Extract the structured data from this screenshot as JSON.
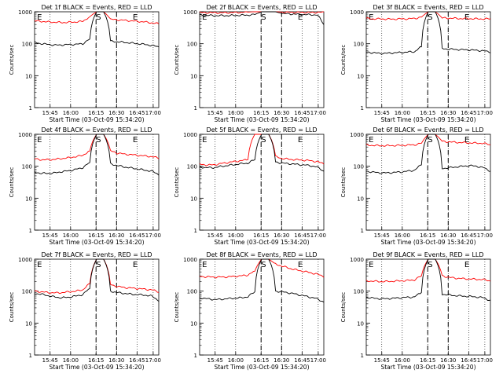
{
  "figure": {
    "xlabel": "Start Time (03-Oct-09 15:34:20)",
    "ylabel": "Counts/sec"
  },
  "colors": {
    "events": "#000000",
    "lld": "#ff0000",
    "axes": "#000000"
  },
  "chart_data": [
    {
      "type": "line",
      "title": "Det 1f BLACK = Events, RED = LLD",
      "xlabel": "Start Time (03-Oct-09 15:34:20)",
      "ylabel": "Counts/sec",
      "yscale": "log",
      "ylim": [
        1,
        1000
      ],
      "xticks": [
        "15:45",
        "16:00",
        "16:15",
        "16:30",
        "16:45",
        "17:00"
      ],
      "yticks": [
        "1",
        "10",
        "100",
        "1000"
      ],
      "markers": [
        "E",
        "S",
        "E"
      ],
      "series": [
        {
          "name": "LLD",
          "color": "#ff0000",
          "values": [
            520,
            500,
            480,
            470,
            460,
            470,
            480,
            500,
            700,
            1000,
            1000,
            580,
            560,
            540,
            520,
            500,
            480,
            450,
            420
          ]
        },
        {
          "name": "Events",
          "color": "#000000",
          "values": [
            110,
            100,
            95,
            90,
            92,
            94,
            96,
            100,
            140,
            1000,
            1000,
            120,
            115,
            110,
            105,
            100,
            95,
            88,
            80
          ]
        }
      ]
    },
    {
      "type": "line",
      "title": "Det 2f BLACK = Events, RED = LLD",
      "xlabel": "Start Time (03-Oct-09 15:34:20)",
      "ylabel": "Counts/sec",
      "yscale": "log",
      "ylim": [
        1,
        1000
      ],
      "xticks": [
        "15:45",
        "16:00",
        "16:15",
        "16:30",
        "16:45",
        "17:00"
      ],
      "yticks": [
        "1",
        "10",
        "100",
        "1000"
      ],
      "markers": [
        "E",
        "S",
        "E"
      ],
      "series": [
        {
          "name": "LLD",
          "color": "#ff0000",
          "values": [
            950,
            940,
            940,
            930,
            940,
            950,
            960,
            980,
            1000,
            1000,
            1000,
            1000,
            980,
            970,
            960,
            960,
            950,
            960,
            960
          ]
        },
        {
          "name": "Events",
          "color": "#000000",
          "values": [
            780,
            770,
            760,
            760,
            760,
            770,
            780,
            790,
            820,
            1000,
            1000,
            1000,
            880,
            860,
            840,
            820,
            810,
            800,
            400
          ]
        }
      ]
    },
    {
      "type": "line",
      "title": "Det 3f BLACK = Events, RED = LLD",
      "xlabel": "Start Time (03-Oct-09 15:34:20)",
      "ylabel": "Counts/sec",
      "yscale": "log",
      "ylim": [
        1,
        1000
      ],
      "xticks": [
        "15:45",
        "16:00",
        "16:15",
        "16:30",
        "16:45",
        "17:00"
      ],
      "yticks": [
        "1",
        "10",
        "100",
        "1000"
      ],
      "markers": [
        "E",
        "S",
        "E"
      ],
      "series": [
        {
          "name": "LLD",
          "color": "#ff0000",
          "values": [
            620,
            600,
            600,
            590,
            590,
            600,
            600,
            620,
            680,
            1000,
            1000,
            640,
            630,
            620,
            610,
            610,
            600,
            600,
            600
          ]
        },
        {
          "name": "Events",
          "color": "#000000",
          "values": [
            55,
            52,
            50,
            50,
            52,
            53,
            55,
            56,
            80,
            1000,
            1000,
            70,
            68,
            66,
            65,
            64,
            62,
            60,
            55
          ]
        }
      ]
    },
    {
      "type": "line",
      "title": "Det 4f BLACK = Events, RED = LLD",
      "xlabel": "Start Time (03-Oct-09 15:34:20)",
      "ylabel": "Counts/sec",
      "yscale": "log",
      "ylim": [
        1,
        1000
      ],
      "xticks": [
        "15:45",
        "16:00",
        "16:15",
        "16:30",
        "16:45",
        "17:00"
      ],
      "yticks": [
        "1",
        "10",
        "100",
        "1000"
      ],
      "markers": [
        "E",
        "S",
        "E"
      ],
      "series": [
        {
          "name": "LLD",
          "color": "#ff0000",
          "values": [
            170,
            160,
            160,
            165,
            175,
            185,
            200,
            220,
            300,
            1000,
            1000,
            300,
            260,
            240,
            230,
            220,
            210,
            200,
            180
          ]
        },
        {
          "name": "Events",
          "color": "#000000",
          "values": [
            65,
            60,
            60,
            62,
            68,
            72,
            80,
            90,
            130,
            1000,
            1000,
            120,
            105,
            95,
            88,
            82,
            75,
            70,
            55
          ]
        }
      ]
    },
    {
      "type": "line",
      "title": "Det 5f BLACK = Events, RED = LLD",
      "xlabel": "Start Time (03-Oct-09 15:34:20)",
      "ylabel": "Counts/sec",
      "yscale": "log",
      "ylim": [
        1,
        1000
      ],
      "xticks": [
        "15:45",
        "16:00",
        "16:15",
        "16:30",
        "16:45",
        "17:00"
      ],
      "yticks": [
        "1",
        "10",
        "100",
        "1000"
      ],
      "markers": [
        "E",
        "S",
        "E"
      ],
      "series": [
        {
          "name": "LLD",
          "color": "#ff0000",
          "values": [
            115,
            110,
            110,
            120,
            130,
            140,
            150,
            160,
            1000,
            1000,
            1000,
            200,
            175,
            165,
            160,
            155,
            150,
            140,
            120
          ]
        },
        {
          "name": "Events",
          "color": "#000000",
          "values": [
            95,
            90,
            90,
            98,
            105,
            112,
            120,
            125,
            160,
            1000,
            1000,
            135,
            125,
            120,
            115,
            110,
            105,
            95,
            70
          ]
        }
      ]
    },
    {
      "type": "line",
      "title": "Det 6f BLACK = Events, RED = LLD",
      "xlabel": "Start Time (03-Oct-09 15:34:20)",
      "ylabel": "Counts/sec",
      "yscale": "log",
      "ylim": [
        1,
        1000
      ],
      "xticks": [
        "15:45",
        "16:00",
        "16:15",
        "16:30",
        "16:45",
        "17:00"
      ],
      "yticks": [
        "1",
        "10",
        "100",
        "1000"
      ],
      "markers": [
        "E",
        "S",
        "E"
      ],
      "series": [
        {
          "name": "LLD",
          "color": "#ff0000",
          "values": [
            460,
            450,
            440,
            440,
            445,
            450,
            460,
            470,
            520,
            1000,
            1000,
            600,
            580,
            560,
            550,
            540,
            530,
            520,
            470
          ]
        },
        {
          "name": "Events",
          "color": "#000000",
          "values": [
            70,
            65,
            62,
            62,
            64,
            66,
            70,
            75,
            110,
            1000,
            1000,
            85,
            90,
            95,
            100,
            105,
            100,
            90,
            70
          ]
        }
      ]
    },
    {
      "type": "line",
      "title": "Det 7f BLACK = Events, RED = LLD",
      "xlabel": "Start Time (03-Oct-09 15:34:20)",
      "ylabel": "Counts/sec",
      "yscale": "log",
      "ylim": [
        1,
        1000
      ],
      "xticks": [
        "15:45",
        "16:00",
        "16:15",
        "16:30",
        "16:45",
        "17:00"
      ],
      "yticks": [
        "1",
        "10",
        "100",
        "1000"
      ],
      "markers": [
        "E",
        "S",
        "E"
      ],
      "series": [
        {
          "name": "LLD",
          "color": "#ff0000",
          "values": [
            100,
            95,
            90,
            88,
            90,
            95,
            100,
            110,
            170,
            1000,
            1000,
            160,
            140,
            130,
            125,
            120,
            115,
            110,
            95
          ]
        },
        {
          "name": "Events",
          "color": "#000000",
          "values": [
            85,
            80,
            72,
            65,
            62,
            65,
            70,
            78,
            120,
            1000,
            1000,
            100,
            90,
            85,
            80,
            78,
            75,
            70,
            50
          ]
        }
      ]
    },
    {
      "type": "line",
      "title": "Det 8f BLACK = Events, RED = LLD",
      "xlabel": "Start Time (03-Oct-09 15:34:20)",
      "ylabel": "Counts/sec",
      "yscale": "log",
      "ylim": [
        1,
        1000
      ],
      "xticks": [
        "15:45",
        "16:00",
        "16:15",
        "16:30",
        "16:45",
        "17:00"
      ],
      "yticks": [
        "1",
        "10",
        "100",
        "1000"
      ],
      "markers": [
        "E",
        "S",
        "E"
      ],
      "series": [
        {
          "name": "LLD",
          "color": "#ff0000",
          "values": [
            290,
            280,
            275,
            275,
            280,
            290,
            300,
            320,
            420,
            1000,
            1000,
            700,
            600,
            520,
            460,
            420,
            380,
            340,
            290
          ]
        },
        {
          "name": "Events",
          "color": "#000000",
          "values": [
            62,
            58,
            55,
            55,
            58,
            60,
            62,
            66,
            95,
            1000,
            1000,
            100,
            95,
            88,
            80,
            72,
            65,
            58,
            45
          ]
        }
      ]
    },
    {
      "type": "line",
      "title": "Det 9f BLACK = Events, RED = LLD",
      "xlabel": "Start Time (03-Oct-09 15:34:20)",
      "ylabel": "Counts/sec",
      "yscale": "log",
      "ylim": [
        1,
        1000
      ],
      "xticks": [
        "15:45",
        "16:00",
        "16:15",
        "16:30",
        "16:45",
        "17:00"
      ],
      "yticks": [
        "1",
        "10",
        "100",
        "1000"
      ],
      "markers": [
        "E",
        "S",
        "E"
      ],
      "series": [
        {
          "name": "LLD",
          "color": "#ff0000",
          "values": [
            210,
            205,
            200,
            200,
            205,
            210,
            215,
            225,
            300,
            1000,
            1000,
            300,
            270,
            255,
            245,
            240,
            235,
            230,
            210
          ]
        },
        {
          "name": "Events",
          "color": "#000000",
          "values": [
            65,
            60,
            58,
            58,
            60,
            62,
            64,
            66,
            90,
            1000,
            1000,
            80,
            76,
            72,
            70,
            68,
            66,
            62,
            50
          ]
        }
      ]
    }
  ]
}
